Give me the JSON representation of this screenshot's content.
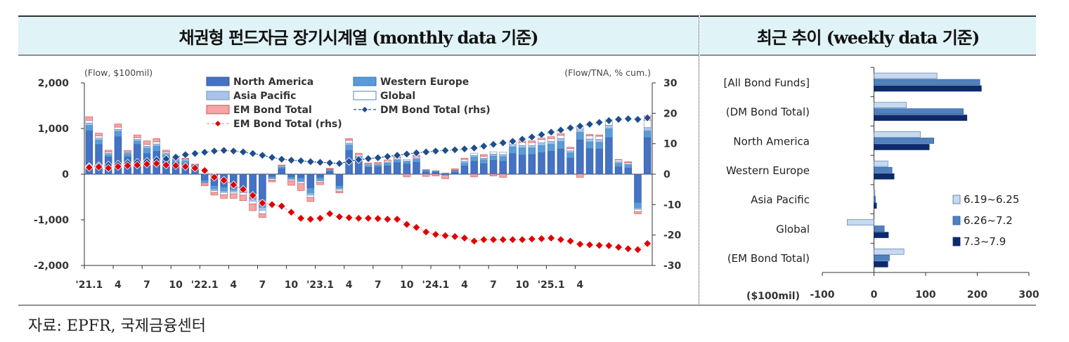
{
  "header": {
    "left_title": "채권형 펀드자금 장기시계열 (monthly data 기준)",
    "right_title": "최근 추이 (weekly data 기준)"
  },
  "source": "자료: EPFR,  국제금융센터",
  "colors": {
    "north_america": "#4472c4",
    "western_europe": "#5b9bd5",
    "asia_pacific": "#a9c4e8",
    "global": "#ffffff",
    "em_bond_total": "#f4a6a6",
    "em_line": "#e00000",
    "dm_line": "#1f4e8c",
    "week1": "#c5d9f1",
    "week2": "#4f81bd",
    "week3": "#0d2a6b",
    "header_bg": "#e0f3f7"
  },
  "chart_data": [
    {
      "type": "bar",
      "left_axis_label": "(Flow, $100mil)",
      "right_axis_label": "(Flow/TNA, % cum.)",
      "ylim": [
        -2000,
        2000
      ],
      "y2lim": [
        -30,
        30
      ],
      "yticks": [
        "2,000",
        "1,000",
        "0",
        "-1,000",
        "-2,000"
      ],
      "y2ticks": [
        "30",
        "20",
        "10",
        "0",
        "-10",
        "-20",
        "-30"
      ],
      "xtick_labels": [
        "'21.1",
        "4",
        "7",
        "10",
        "'22.1",
        "4",
        "7",
        "10",
        "'23.1",
        "4",
        "7",
        "10",
        "'24.1",
        "4",
        "7",
        "10",
        "'25.1",
        "4"
      ],
      "legend": [
        "North America",
        "Western Europe",
        "Asia Pacific",
        "Global",
        "EM Bond Total",
        "DM Bond Total (rhs)",
        "EM Bond Total (rhs)"
      ],
      "legend_position": "top-center",
      "north_america": [
        950,
        650,
        380,
        820,
        380,
        650,
        450,
        500,
        350,
        250,
        230,
        160,
        -130,
        -250,
        -280,
        -260,
        -300,
        -450,
        -550,
        -50,
        120,
        -60,
        -80,
        -300,
        -70,
        60,
        -250,
        520,
        320,
        150,
        160,
        180,
        250,
        220,
        260,
        50,
        40,
        -20,
        40,
        180,
        280,
        230,
        300,
        280,
        450,
        420,
        430,
        470,
        500,
        550,
        350,
        750,
        560,
        550,
        800,
        160,
        130,
        -620,
        800
      ],
      "western_europe": [
        120,
        100,
        50,
        120,
        70,
        80,
        120,
        120,
        80,
        50,
        60,
        30,
        -50,
        -80,
        -90,
        -100,
        -80,
        -100,
        -180,
        -40,
        40,
        -40,
        -70,
        -120,
        -60,
        30,
        -60,
        120,
        60,
        40,
        40,
        60,
        60,
        50,
        70,
        30,
        20,
        15,
        30,
        70,
        100,
        90,
        100,
        110,
        150,
        160,
        150,
        160,
        160,
        170,
        120,
        170,
        150,
        150,
        200,
        80,
        70,
        -120,
        150
      ],
      "asia_pacific": [
        50,
        40,
        25,
        40,
        20,
        30,
        40,
        40,
        25,
        20,
        20,
        10,
        -15,
        -30,
        -30,
        -30,
        -30,
        -40,
        -60,
        -10,
        10,
        -15,
        -20,
        -40,
        -20,
        10,
        -20,
        40,
        20,
        15,
        15,
        20,
        20,
        20,
        25,
        10,
        5,
        5,
        10,
        30,
        30,
        30,
        40,
        40,
        50,
        50,
        50,
        60,
        60,
        60,
        40,
        70,
        60,
        60,
        70,
        30,
        25,
        -30,
        70
      ],
      "global": [
        60,
        50,
        30,
        50,
        20,
        40,
        40,
        50,
        30,
        20,
        20,
        10,
        -20,
        -40,
        -50,
        -40,
        -50,
        -60,
        -80,
        -30,
        20,
        -30,
        -40,
        -50,
        -30,
        10,
        -40,
        60,
        30,
        20,
        20,
        30,
        30,
        30,
        30,
        10,
        10,
        5,
        10,
        40,
        50,
        40,
        50,
        50,
        60,
        60,
        60,
        70,
        60,
        70,
        50,
        80,
        70,
        70,
        80,
        40,
        30,
        -50,
        160
      ],
      "em_bond_total": [
        80,
        60,
        40,
        70,
        30,
        60,
        80,
        70,
        40,
        30,
        20,
        10,
        -40,
        -60,
        -80,
        -100,
        -120,
        -150,
        -80,
        -40,
        10,
        -100,
        -150,
        -90,
        -50,
        20,
        -40,
        40,
        30,
        20,
        20,
        20,
        40,
        -60,
        30,
        -50,
        -40,
        -80,
        30,
        30,
        -60,
        40,
        -40,
        -70,
        30,
        30,
        40,
        30,
        40,
        40,
        30,
        -70,
        30,
        30,
        50,
        10,
        20,
        -50,
        100
      ],
      "dm_bond_total_rhs": [
        2.5,
        2.8,
        3.0,
        3.3,
        3.6,
        3.9,
        4.2,
        4.6,
        5.0,
        5.6,
        6.4,
        6.8,
        7.2,
        7.6,
        7.8,
        7.6,
        7.3,
        6.8,
        6.2,
        5.5,
        4.9,
        4.6,
        4.4,
        4.1,
        3.9,
        3.7,
        3.5,
        4.2,
        4.8,
        5.1,
        5.4,
        5.8,
        6.2,
        6.6,
        7.0,
        7.3,
        7.6,
        7.8,
        8.0,
        8.3,
        8.6,
        9.2,
        9.8,
        10.3,
        10.8,
        11.5,
        12.2,
        13.0,
        13.8,
        14.5,
        15.2,
        15.8,
        16.4,
        17.0,
        17.6,
        18.0,
        18.2,
        18.0,
        18.5
      ],
      "em_bond_total_rhs": [
        2.2,
        2.4,
        2.0,
        2.5,
        2.8,
        3.0,
        3.3,
        3.5,
        3.0,
        2.8,
        2.5,
        2.0,
        1.2,
        -1.0,
        -2.0,
        -3.5,
        -5.0,
        -7.0,
        -9.5,
        -10.0,
        -10.5,
        -12.5,
        -14.5,
        -14.8,
        -14.5,
        -13.0,
        -14.0,
        -14.3,
        -14.5,
        -14.5,
        -14.6,
        -14.8,
        -14.8,
        -16.5,
        -17.5,
        -19.0,
        -19.8,
        -20.2,
        -20.5,
        -21.0,
        -22.0,
        -21.5,
        -21.5,
        -21.5,
        -21.5,
        -21.5,
        -21.3,
        -21.2,
        -21.0,
        -21.5,
        -22.0,
        -23.0,
        -23.2,
        -23.4,
        -23.5,
        -24.0,
        -24.5,
        -24.8,
        -22.8
      ]
    },
    {
      "type": "bar",
      "orientation": "horizontal",
      "unit_label": "($100mil)",
      "categories": [
        "[All Bond Funds]",
        "(DM Bond Total)",
        "North America",
        "Western Europe",
        "Asia Pacific",
        "Global",
        "(EM Bond Total)"
      ],
      "xlim": [
        -100,
        300
      ],
      "xticks": [
        "-100",
        "0",
        "100",
        "200",
        "300"
      ],
      "legend_position": "right",
      "series": [
        {
          "name": "6.19~6.25",
          "values": [
            122,
            63,
            90,
            27,
            2,
            -52,
            58
          ]
        },
        {
          "name": "6.26~7.2",
          "values": [
            205,
            173,
            116,
            35,
            3,
            20,
            30
          ]
        },
        {
          "name": "7.3~7.9",
          "values": [
            208,
            180,
            107,
            39,
            5,
            28,
            27
          ]
        }
      ]
    }
  ]
}
